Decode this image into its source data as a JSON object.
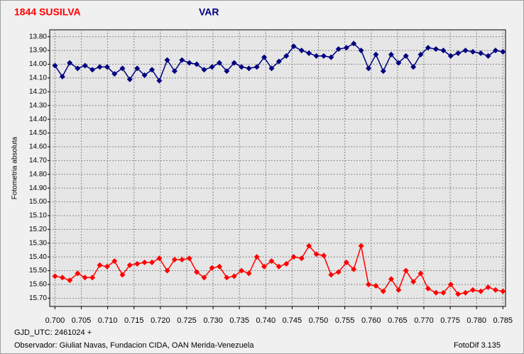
{
  "chart_data": {
    "type": "line",
    "y_label": "Fotometria absoluta",
    "footer_left": "GJD_UTC: 2461024 +",
    "footer_observer": "Observador: Giuliat Navas, Fundacion CIDA, OAN  Merida-Venezuela",
    "footer_right": "FotoDif 3.135",
    "x": [
      0.7,
      0.7014,
      0.7028,
      0.7043,
      0.7057,
      0.7071,
      0.7085,
      0.7099,
      0.7113,
      0.7128,
      0.7142,
      0.7156,
      0.717,
      0.7184,
      0.7198,
      0.7213,
      0.7227,
      0.7241,
      0.7255,
      0.7269,
      0.7283,
      0.7298,
      0.7312,
      0.7326,
      0.734,
      0.7354,
      0.7368,
      0.7383,
      0.7397,
      0.7411,
      0.7425,
      0.7439,
      0.7453,
      0.7468,
      0.7482,
      0.7496,
      0.751,
      0.7524,
      0.7538,
      0.7553,
      0.7567,
      0.7581,
      0.7595,
      0.7609,
      0.7623,
      0.7638,
      0.7652,
      0.7666,
      0.768,
      0.7694,
      0.7708,
      0.7723,
      0.7737,
      0.7751,
      0.7765,
      0.7779,
      0.7793,
      0.7808,
      0.7822,
      0.7836,
      0.785
    ],
    "series": [
      {
        "name": "VAR",
        "color": "#000080",
        "values": [
          14.01,
          14.09,
          13.99,
          14.03,
          14.01,
          14.04,
          14.02,
          14.02,
          14.07,
          14.03,
          14.11,
          14.03,
          14.08,
          14.04,
          14.12,
          13.97,
          14.05,
          13.97,
          13.99,
          14.0,
          14.04,
          14.02,
          13.99,
          14.05,
          13.99,
          14.02,
          14.03,
          14.02,
          13.95,
          14.03,
          13.98,
          13.94,
          13.87,
          13.9,
          13.92,
          13.94,
          13.94,
          13.95,
          13.89,
          13.88,
          13.85,
          13.9,
          14.03,
          13.93,
          14.05,
          13.93,
          13.99,
          13.94,
          14.02,
          13.93,
          13.88,
          13.89,
          13.9,
          13.94,
          13.92,
          13.9,
          13.91,
          13.92,
          13.94,
          13.9,
          13.91
        ]
      },
      {
        "name": "1844 SUSILVA",
        "color": "#ff0000",
        "values": [
          15.54,
          15.55,
          15.57,
          15.52,
          15.55,
          15.55,
          15.46,
          15.47,
          15.43,
          15.53,
          15.46,
          15.45,
          15.44,
          15.44,
          15.41,
          15.5,
          15.42,
          15.42,
          15.41,
          15.51,
          15.55,
          15.48,
          15.47,
          15.55,
          15.54,
          15.5,
          15.52,
          15.4,
          15.47,
          15.43,
          15.47,
          15.45,
          15.4,
          15.41,
          15.32,
          15.38,
          15.39,
          15.53,
          15.51,
          15.44,
          15.49,
          15.32,
          15.6,
          15.61,
          15.65,
          15.56,
          15.64,
          15.5,
          15.58,
          15.52,
          15.63,
          15.66,
          15.66,
          15.6,
          15.67,
          15.66,
          15.64,
          15.65,
          15.62,
          15.64,
          15.65
        ]
      }
    ],
    "xlim": [
      0.699,
      0.7855
    ],
    "xticks": [
      {
        "value": 0.7,
        "label": "0.700"
      },
      {
        "value": 0.705,
        "label": "0.705"
      },
      {
        "value": 0.71,
        "label": "0.710"
      },
      {
        "value": 0.715,
        "label": "0.715"
      },
      {
        "value": 0.72,
        "label": "0.720"
      },
      {
        "value": 0.725,
        "label": "0.725"
      },
      {
        "value": 0.73,
        "label": "0.730"
      },
      {
        "value": 0.735,
        "label": "0.735"
      },
      {
        "value": 0.74,
        "label": "0.740"
      },
      {
        "value": 0.745,
        "label": "0.745"
      },
      {
        "value": 0.75,
        "label": "0.750"
      },
      {
        "value": 0.755,
        "label": "0.755"
      },
      {
        "value": 0.76,
        "label": "0.760"
      },
      {
        "value": 0.765,
        "label": "0.765"
      },
      {
        "value": 0.77,
        "label": "0.770"
      },
      {
        "value": 0.775,
        "label": "0.775"
      },
      {
        "value": 0.78,
        "label": "0.780"
      },
      {
        "value": 0.785,
        "label": "0.785"
      }
    ],
    "ylim": [
      13.75,
      15.76
    ],
    "y_inverted": true,
    "yticks": [
      {
        "value": 13.8,
        "label": "13.80"
      },
      {
        "value": 13.9,
        "label": "13.90"
      },
      {
        "value": 14.0,
        "label": "14.00"
      },
      {
        "value": 14.1,
        "label": "14.10"
      },
      {
        "value": 14.2,
        "label": "14.20"
      },
      {
        "value": 14.3,
        "label": "14.30"
      },
      {
        "value": 14.4,
        "label": "14.40"
      },
      {
        "value": 14.5,
        "label": "14.50"
      },
      {
        "value": 14.6,
        "label": "14.60"
      },
      {
        "value": 14.7,
        "label": "14.70"
      },
      {
        "value": 14.8,
        "label": "14.80"
      },
      {
        "value": 14.9,
        "label": "14.90"
      },
      {
        "value": 15.0,
        "label": "15.00"
      },
      {
        "value": 15.1,
        "label": "15.10"
      },
      {
        "value": 15.2,
        "label": "15.20"
      },
      {
        "value": 15.3,
        "label": "15.30"
      },
      {
        "value": 15.4,
        "label": "15.40"
      },
      {
        "value": 15.5,
        "label": "15.50"
      },
      {
        "value": 15.6,
        "label": "15.60"
      },
      {
        "value": 15.7,
        "label": "15.70"
      }
    ],
    "grid": true
  }
}
